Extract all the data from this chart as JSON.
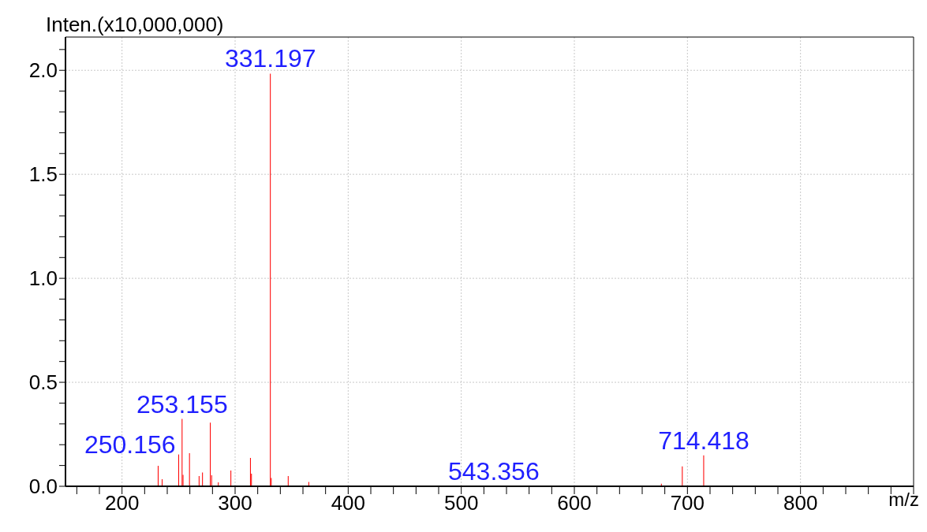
{
  "chart_data": {
    "type": "bar",
    "xlabel": "m/z",
    "ylabel": "Inten.(x10,000,000)",
    "color": "#ff0000",
    "x": [
      232,
      235.5,
      250.156,
      253.155,
      254,
      259.7,
      268.2,
      271.2,
      278.1,
      279.3,
      285.2,
      296.3,
      313.6,
      314.5,
      331.197,
      332,
      347,
      365.2,
      543.356,
      677,
      695.5,
      714.418
    ],
    "values": [
      0.099,
      0.034,
      0.153,
      0.324,
      0.055,
      0.159,
      0.049,
      0.066,
      0.306,
      0.053,
      0.019,
      0.076,
      0.136,
      0.061,
      1.984,
      0.04,
      0.049,
      0.021,
      null,
      0.012,
      0.096,
      0.149
    ],
    "xlim": [
      150,
      900
    ],
    "xticks": [
      {
        "value": 160,
        "label": null
      },
      {
        "value": 180,
        "label": null
      },
      200,
      {
        "value": 220,
        "label": null
      },
      {
        "value": 240,
        "label": null
      },
      {
        "value": 260,
        "label": null
      },
      {
        "value": 280,
        "label": null
      },
      300,
      {
        "value": 320,
        "label": null
      },
      {
        "value": 340,
        "label": null
      },
      {
        "value": 360,
        "label": null
      },
      {
        "value": 380,
        "label": null
      },
      400,
      {
        "value": 420,
        "label": null
      },
      {
        "value": 440,
        "label": null
      },
      {
        "value": 460,
        "label": null
      },
      {
        "value": 480,
        "label": null
      },
      500,
      {
        "value": 520,
        "label": null
      },
      {
        "value": 540,
        "label": null
      },
      {
        "value": 560,
        "label": null
      },
      {
        "value": 580,
        "label": null
      },
      600,
      {
        "value": 620,
        "label": null
      },
      {
        "value": 640,
        "label": null
      },
      {
        "value": 660,
        "label": null
      },
      {
        "value": 680,
        "label": null
      },
      700,
      {
        "value": 720,
        "label": null
      },
      {
        "value": 740,
        "label": null
      },
      {
        "value": 760,
        "label": null
      },
      {
        "value": 780,
        "label": null
      },
      800,
      {
        "value": 820,
        "label": null
      },
      {
        "value": 840,
        "label": null
      },
      {
        "value": 860,
        "label": null
      },
      {
        "value": 880,
        "label": null
      },
      {
        "value": 900,
        "label": null
      }
    ],
    "ylim": [
      0,
      2.16
    ],
    "yticks": [
      {
        "value": 0,
        "label": "0.0"
      },
      {
        "value": 0.1,
        "label": null
      },
      {
        "value": 0.2,
        "label": null
      },
      {
        "value": 0.3,
        "label": null
      },
      {
        "value": 0.4,
        "label": null
      },
      {
        "value": 0.5,
        "label": "0.5"
      },
      {
        "value": 0.6,
        "label": null
      },
      {
        "value": 0.7,
        "label": null
      },
      {
        "value": 0.8,
        "label": null
      },
      {
        "value": 0.9,
        "label": null
      },
      {
        "value": 1,
        "label": "1.0"
      },
      {
        "value": 1.1,
        "label": null
      },
      {
        "value": 1.2,
        "label": null
      },
      {
        "value": 1.3,
        "label": null
      },
      {
        "value": 1.4,
        "label": null
      },
      {
        "value": 1.5,
        "label": "1.5"
      },
      {
        "value": 1.6,
        "label": null
      },
      {
        "value": 1.7,
        "label": null
      },
      {
        "value": 1.8,
        "label": null
      },
      {
        "value": 1.9,
        "label": null
      },
      {
        "value": 2,
        "label": "2.0"
      },
      {
        "value": 2.1,
        "label": null
      }
    ],
    "grid": true,
    "annotations": [
      {
        "text": "250.156",
        "x": 250.156,
        "y": 0.153
      },
      {
        "text": "253.155",
        "x": 253.155,
        "y": 0.324
      },
      {
        "text": "331.197",
        "x": 331.197,
        "y": 1.984
      },
      "543.356",
      {
        "text": "714.418",
        "x": 714.418,
        "y": 0.149
      }
    ]
  }
}
